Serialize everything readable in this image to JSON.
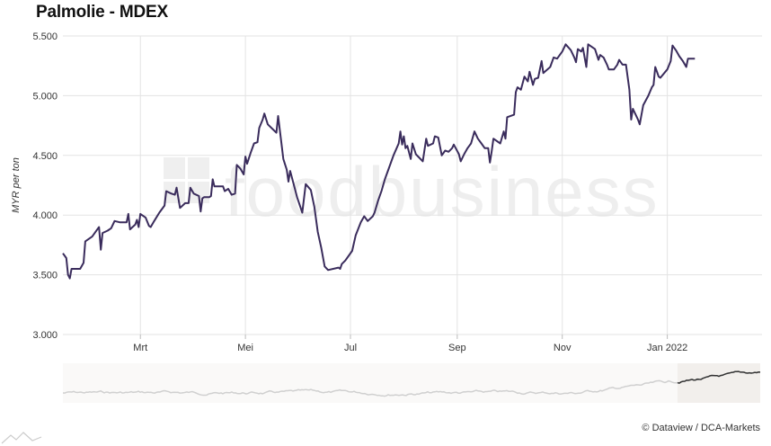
{
  "header": {
    "title": "Palmolie - MDEX"
  },
  "watermark": {
    "text": "foodbusiness"
  },
  "footer": {
    "credit": "© Dataview / DCA-Markets"
  },
  "colors": {
    "line": "#3a2c5c",
    "grid": "#e3e3e3",
    "navigator_bg": "#f2efec",
    "navigator_line": "#d0d0d0",
    "navigator_active_line": "#333333"
  },
  "chart_data": {
    "type": "line",
    "ylabel": "MYR per ton",
    "ylim": [
      3000,
      5500
    ],
    "yticks": [
      3000,
      3500,
      4000,
      4500,
      5000,
      5500
    ],
    "ytick_labels": [
      "3.000",
      "3.500",
      "4.000",
      "4.500",
      "5.000",
      "5.500"
    ],
    "xlim": [
      "2021-01-15",
      "2022-02-25"
    ],
    "xticks": [
      {
        "date": "2021-03-01",
        "label": "Mrt"
      },
      {
        "date": "2021-05-01",
        "label": "Mei"
      },
      {
        "date": "2021-07-01",
        "label": "Jul"
      },
      {
        "date": "2021-09-01",
        "label": "Sep"
      },
      {
        "date": "2021-11-01",
        "label": "Nov"
      },
      {
        "date": "2022-01-01",
        "label": "Jan 2022"
      }
    ],
    "grid": true,
    "legend": "none",
    "series": [
      {
        "points": [
          [
            "2021-01-15",
            3680
          ],
          [
            "2021-01-17",
            3640
          ],
          [
            "2021-01-18",
            3500
          ],
          [
            "2021-01-19",
            3470
          ],
          [
            "2021-01-20",
            3550
          ],
          [
            "2021-01-25",
            3550
          ],
          [
            "2021-01-27",
            3600
          ],
          [
            "2021-01-28",
            3780
          ],
          [
            "2021-02-01",
            3820
          ],
          [
            "2021-02-04",
            3880
          ],
          [
            "2021-02-05",
            3900
          ],
          [
            "2021-02-06",
            3710
          ],
          [
            "2021-02-07",
            3850
          ],
          [
            "2021-02-10",
            3870
          ],
          [
            "2021-02-12",
            3890
          ],
          [
            "2021-02-14",
            3950
          ],
          [
            "2021-02-17",
            3940
          ],
          [
            "2021-02-21",
            3940
          ],
          [
            "2021-02-22",
            4010
          ],
          [
            "2021-02-23",
            3880
          ],
          [
            "2021-02-26",
            3920
          ],
          [
            "2021-02-27",
            3960
          ],
          [
            "2021-02-28",
            3900
          ],
          [
            "2021-03-01",
            4010
          ],
          [
            "2021-03-04",
            3980
          ],
          [
            "2021-03-06",
            3910
          ],
          [
            "2021-03-07",
            3900
          ],
          [
            "2021-03-09",
            3950
          ],
          [
            "2021-03-12",
            4020
          ],
          [
            "2021-03-15",
            4080
          ],
          [
            "2021-03-16",
            4200
          ],
          [
            "2021-03-19",
            4180
          ],
          [
            "2021-03-21",
            4170
          ],
          [
            "2021-03-22",
            4230
          ],
          [
            "2021-03-24",
            4060
          ],
          [
            "2021-03-27",
            4100
          ],
          [
            "2021-03-29",
            4100
          ],
          [
            "2021-03-30",
            4230
          ],
          [
            "2021-04-01",
            4180
          ],
          [
            "2021-04-04",
            4160
          ],
          [
            "2021-04-05",
            4030
          ],
          [
            "2021-04-06",
            4140
          ],
          [
            "2021-04-07",
            4150
          ],
          [
            "2021-04-10",
            4150
          ],
          [
            "2021-04-11",
            4160
          ],
          [
            "2021-04-12",
            4300
          ],
          [
            "2021-04-13",
            4240
          ],
          [
            "2021-04-18",
            4240
          ],
          [
            "2021-04-19",
            4200
          ],
          [
            "2021-04-21",
            4220
          ],
          [
            "2021-04-23",
            4170
          ],
          [
            "2021-04-25",
            4180
          ],
          [
            "2021-04-26",
            4420
          ],
          [
            "2021-04-28",
            4390
          ],
          [
            "2021-04-30",
            4340
          ],
          [
            "2021-05-01",
            4490
          ],
          [
            "2021-05-02",
            4430
          ],
          [
            "2021-05-04",
            4520
          ],
          [
            "2021-05-06",
            4600
          ],
          [
            "2021-05-08",
            4610
          ],
          [
            "2021-05-09",
            4730
          ],
          [
            "2021-05-11",
            4800
          ],
          [
            "2021-05-12",
            4850
          ],
          [
            "2021-05-14",
            4760
          ],
          [
            "2021-05-19",
            4690
          ],
          [
            "2021-05-20",
            4830
          ],
          [
            "2021-05-23",
            4470
          ],
          [
            "2021-05-25",
            4380
          ],
          [
            "2021-05-26",
            4280
          ],
          [
            "2021-05-27",
            4370
          ],
          [
            "2021-05-29",
            4260
          ],
          [
            "2021-05-31",
            4150
          ],
          [
            "2021-06-03",
            4020
          ],
          [
            "2021-06-05",
            4260
          ],
          [
            "2021-06-08",
            4210
          ],
          [
            "2021-06-10",
            4070
          ],
          [
            "2021-06-12",
            3860
          ],
          [
            "2021-06-14",
            3730
          ],
          [
            "2021-06-16",
            3570
          ],
          [
            "2021-06-18",
            3540
          ],
          [
            "2021-06-24",
            3560
          ],
          [
            "2021-06-25",
            3550
          ],
          [
            "2021-06-26",
            3590
          ],
          [
            "2021-06-28",
            3620
          ],
          [
            "2021-07-02",
            3700
          ],
          [
            "2021-07-04",
            3830
          ],
          [
            "2021-07-07",
            3940
          ],
          [
            "2021-07-09",
            3990
          ],
          [
            "2021-07-11",
            3950
          ],
          [
            "2021-07-14",
            3990
          ],
          [
            "2021-07-15",
            4020
          ],
          [
            "2021-07-17",
            4120
          ],
          [
            "2021-07-19",
            4200
          ],
          [
            "2021-07-21",
            4300
          ],
          [
            "2021-07-24",
            4420
          ],
          [
            "2021-07-26",
            4500
          ],
          [
            "2021-07-29",
            4600
          ],
          [
            "2021-07-30",
            4700
          ],
          [
            "2021-07-31",
            4590
          ],
          [
            "2021-08-01",
            4660
          ],
          [
            "2021-08-02",
            4560
          ],
          [
            "2021-08-03",
            4580
          ],
          [
            "2021-08-05",
            4470
          ],
          [
            "2021-08-06",
            4600
          ],
          [
            "2021-08-08",
            4510
          ],
          [
            "2021-08-12",
            4450
          ],
          [
            "2021-08-14",
            4640
          ],
          [
            "2021-08-15",
            4580
          ],
          [
            "2021-08-18",
            4600
          ],
          [
            "2021-08-19",
            4660
          ],
          [
            "2021-08-21",
            4650
          ],
          [
            "2021-08-23",
            4500
          ],
          [
            "2021-08-25",
            4540
          ],
          [
            "2021-08-27",
            4530
          ],
          [
            "2021-08-29",
            4560
          ],
          [
            "2021-08-30",
            4590
          ],
          [
            "2021-09-02",
            4510
          ],
          [
            "2021-09-03",
            4450
          ],
          [
            "2021-09-05",
            4510
          ],
          [
            "2021-09-07",
            4560
          ],
          [
            "2021-09-09",
            4600
          ],
          [
            "2021-09-11",
            4700
          ],
          [
            "2021-09-13",
            4640
          ],
          [
            "2021-09-15",
            4600
          ],
          [
            "2021-09-17",
            4560
          ],
          [
            "2021-09-19",
            4560
          ],
          [
            "2021-09-20",
            4440
          ],
          [
            "2021-09-21",
            4530
          ],
          [
            "2021-09-22",
            4640
          ],
          [
            "2021-09-26",
            4600
          ],
          [
            "2021-09-28",
            4700
          ],
          [
            "2021-09-29",
            4640
          ],
          [
            "2021-09-30",
            4820
          ],
          [
            "2021-10-04",
            4840
          ],
          [
            "2021-10-05",
            5030
          ],
          [
            "2021-10-06",
            5070
          ],
          [
            "2021-10-08",
            5050
          ],
          [
            "2021-10-10",
            5160
          ],
          [
            "2021-10-12",
            5120
          ],
          [
            "2021-10-13",
            5200
          ],
          [
            "2021-10-15",
            5090
          ],
          [
            "2021-10-16",
            5140
          ],
          [
            "2021-10-18",
            5150
          ],
          [
            "2021-10-20",
            5290
          ],
          [
            "2021-10-21",
            5190
          ],
          [
            "2021-10-25",
            5240
          ],
          [
            "2021-10-27",
            5320
          ],
          [
            "2021-10-29",
            5310
          ],
          [
            "2021-11-01",
            5370
          ],
          [
            "2021-11-03",
            5430
          ],
          [
            "2021-11-06",
            5380
          ],
          [
            "2021-11-08",
            5320
          ],
          [
            "2021-11-09",
            5280
          ],
          [
            "2021-11-10",
            5390
          ],
          [
            "2021-11-12",
            5370
          ],
          [
            "2021-11-13",
            5400
          ],
          [
            "2021-11-15",
            5240
          ],
          [
            "2021-11-16",
            5430
          ],
          [
            "2021-11-20",
            5390
          ],
          [
            "2021-11-22",
            5300
          ],
          [
            "2021-11-23",
            5340
          ],
          [
            "2021-11-25",
            5320
          ],
          [
            "2021-11-27",
            5260
          ],
          [
            "2021-11-28",
            5220
          ],
          [
            "2021-12-01",
            5220
          ],
          [
            "2021-12-03",
            5260
          ],
          [
            "2021-12-04",
            5300
          ],
          [
            "2021-12-06",
            5260
          ],
          [
            "2021-12-08",
            5260
          ],
          [
            "2021-12-10",
            5050
          ],
          [
            "2021-12-11",
            4800
          ],
          [
            "2021-12-12",
            4890
          ],
          [
            "2021-12-15",
            4800
          ],
          [
            "2021-12-16",
            4760
          ],
          [
            "2021-12-18",
            4920
          ],
          [
            "2021-12-21",
            5000
          ],
          [
            "2021-12-23",
            5070
          ],
          [
            "2021-12-24",
            5090
          ],
          [
            "2021-12-25",
            5240
          ],
          [
            "2021-12-27",
            5160
          ],
          [
            "2021-12-28",
            5150
          ],
          [
            "2022-01-01",
            5220
          ],
          [
            "2022-01-03",
            5290
          ],
          [
            "2022-01-04",
            5420
          ],
          [
            "2022-01-06",
            5380
          ],
          [
            "2022-01-08",
            5330
          ],
          [
            "2022-01-10",
            5290
          ],
          [
            "2022-01-12",
            5240
          ],
          [
            "2022-01-13",
            5310
          ],
          [
            "2022-01-17",
            5310
          ]
        ]
      }
    ]
  }
}
